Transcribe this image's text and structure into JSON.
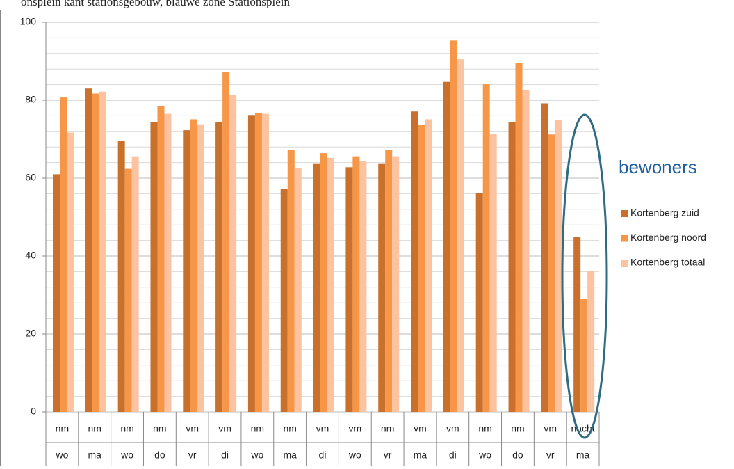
{
  "chart_data": {
    "type": "bar",
    "title": "onsplein kant stationsgebouw, blauwe zone Stationsplein",
    "annotation": "bewoners",
    "categories": [
      [
        "nm",
        "wo"
      ],
      [
        "nm",
        "ma"
      ],
      [
        "nm",
        "wo"
      ],
      [
        "nm",
        "do"
      ],
      [
        "vm",
        "vr"
      ],
      [
        "vm",
        "di"
      ],
      [
        "nm",
        "wo"
      ],
      [
        "nm",
        "ma"
      ],
      [
        "vm",
        "di"
      ],
      [
        "vm",
        "wo"
      ],
      [
        "nm",
        "vr"
      ],
      [
        "vm",
        "ma"
      ],
      [
        "vm",
        "di"
      ],
      [
        "nm",
        "wo"
      ],
      [
        "nm",
        "do"
      ],
      [
        "vm",
        "vr"
      ],
      [
        "nacht",
        "ma"
      ]
    ],
    "series": [
      {
        "name": "Kortenberg zuid",
        "color": "#c8702c",
        "values": [
          61,
          83,
          69.6,
          74.4,
          72.3,
          74.4,
          76.2,
          57.2,
          63.8,
          62.8,
          63.8,
          77.1,
          84.7,
          56.2,
          74.4,
          79.2,
          45
        ]
      },
      {
        "name": "Kortenberg noord",
        "color": "#f79646",
        "values": [
          80.7,
          81.7,
          62.4,
          78.4,
          75.1,
          87.2,
          76.8,
          67.2,
          66.4,
          65.6,
          67.2,
          73.6,
          95.3,
          84.1,
          89.6,
          71.2,
          29
        ]
      },
      {
        "name": "Kortenberg totaal",
        "color": "#fbc3a0",
        "values": [
          71.7,
          82.2,
          65.6,
          76.5,
          73.8,
          81.3,
          76.5,
          62.6,
          65.2,
          64.3,
          65.6,
          75.1,
          90.5,
          71.4,
          82.6,
          75,
          36.2
        ]
      }
    ],
    "ylim": [
      0,
      100
    ],
    "yticks": [
      0,
      20,
      40,
      60,
      80,
      100
    ],
    "minor_yticks": [
      4,
      8,
      12,
      16,
      24,
      28,
      32,
      36,
      44,
      48,
      52,
      56,
      64,
      68,
      72,
      76,
      84,
      88,
      92,
      96
    ],
    "grid": true,
    "legend": "right"
  }
}
